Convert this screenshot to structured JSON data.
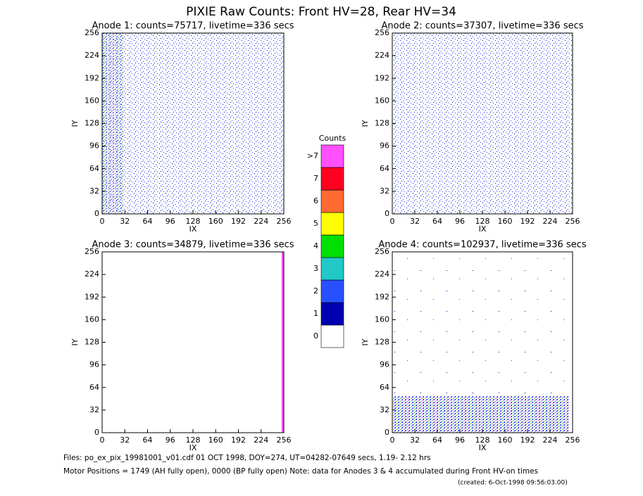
{
  "title": "PIXIE Raw Counts:  Front HV=28, Rear HV=34",
  "chart_data": [
    {
      "type": "heatmap",
      "title": "Anode 1: counts=75717, livetime=336 secs",
      "x_label": "IX",
      "y_label": "IY",
      "xlim": [
        0,
        256
      ],
      "ylim": [
        0,
        256
      ],
      "xticks": [
        0,
        32,
        64,
        96,
        128,
        160,
        192,
        224,
        256
      ],
      "yticks": [
        0,
        32,
        64,
        96,
        128,
        160,
        192,
        224,
        256
      ]
    },
    {
      "type": "heatmap",
      "title": "Anode 2: counts=37307, livetime=336 secs",
      "x_label": "IX",
      "y_label": "IY",
      "xlim": [
        0,
        256
      ],
      "ylim": [
        0,
        256
      ],
      "xticks": [
        0,
        32,
        64,
        96,
        128,
        160,
        192,
        224,
        256
      ],
      "yticks": [
        0,
        32,
        64,
        96,
        128,
        160,
        192,
        224,
        256
      ]
    },
    {
      "type": "heatmap",
      "title": "Anode 3: counts=34879, livetime=336 secs",
      "x_label": "IX",
      "y_label": "IY",
      "xlim": [
        0,
        256
      ],
      "ylim": [
        0,
        256
      ],
      "xticks": [
        0,
        32,
        64,
        96,
        128,
        160,
        192,
        224,
        256
      ],
      "yticks": [
        0,
        32,
        64,
        96,
        128,
        160,
        192,
        224,
        256
      ]
    },
    {
      "type": "heatmap",
      "title": "Anode 4: counts=102937, livetime=336 secs",
      "x_label": "IX",
      "y_label": "IY",
      "xlim": [
        0,
        256
      ],
      "ylim": [
        0,
        256
      ],
      "xticks": [
        0,
        32,
        64,
        96,
        128,
        160,
        192,
        224,
        256
      ],
      "yticks": [
        0,
        32,
        64,
        96,
        128,
        160,
        192,
        224,
        256
      ]
    }
  ],
  "colorbar": {
    "title": "Counts",
    "labels": [
      0,
      1,
      2,
      3,
      4,
      5,
      6,
      7,
      ">7"
    ],
    "colors": [
      "#ffffff",
      "#0000b0",
      "#2850ff",
      "#20c8c8",
      "#00e000",
      "#ffff00",
      "#ff6a30",
      "#ff0020",
      "#ff50ff"
    ]
  },
  "footer": {
    "files": "Files: po_ex_pix_19981001_v01.cdf    01 OCT 1998, DOY=274, UT=04282-07649 secs,  1.19- 2.12 hrs",
    "motor": "Motor Positions = 1749 (AH fully open), 0000 (BP fully open)    Note: data for Anodes 3 & 4 accumulated during Front HV-on times",
    "created": "(created:  6-Oct-1998 09:56:03.00)"
  }
}
